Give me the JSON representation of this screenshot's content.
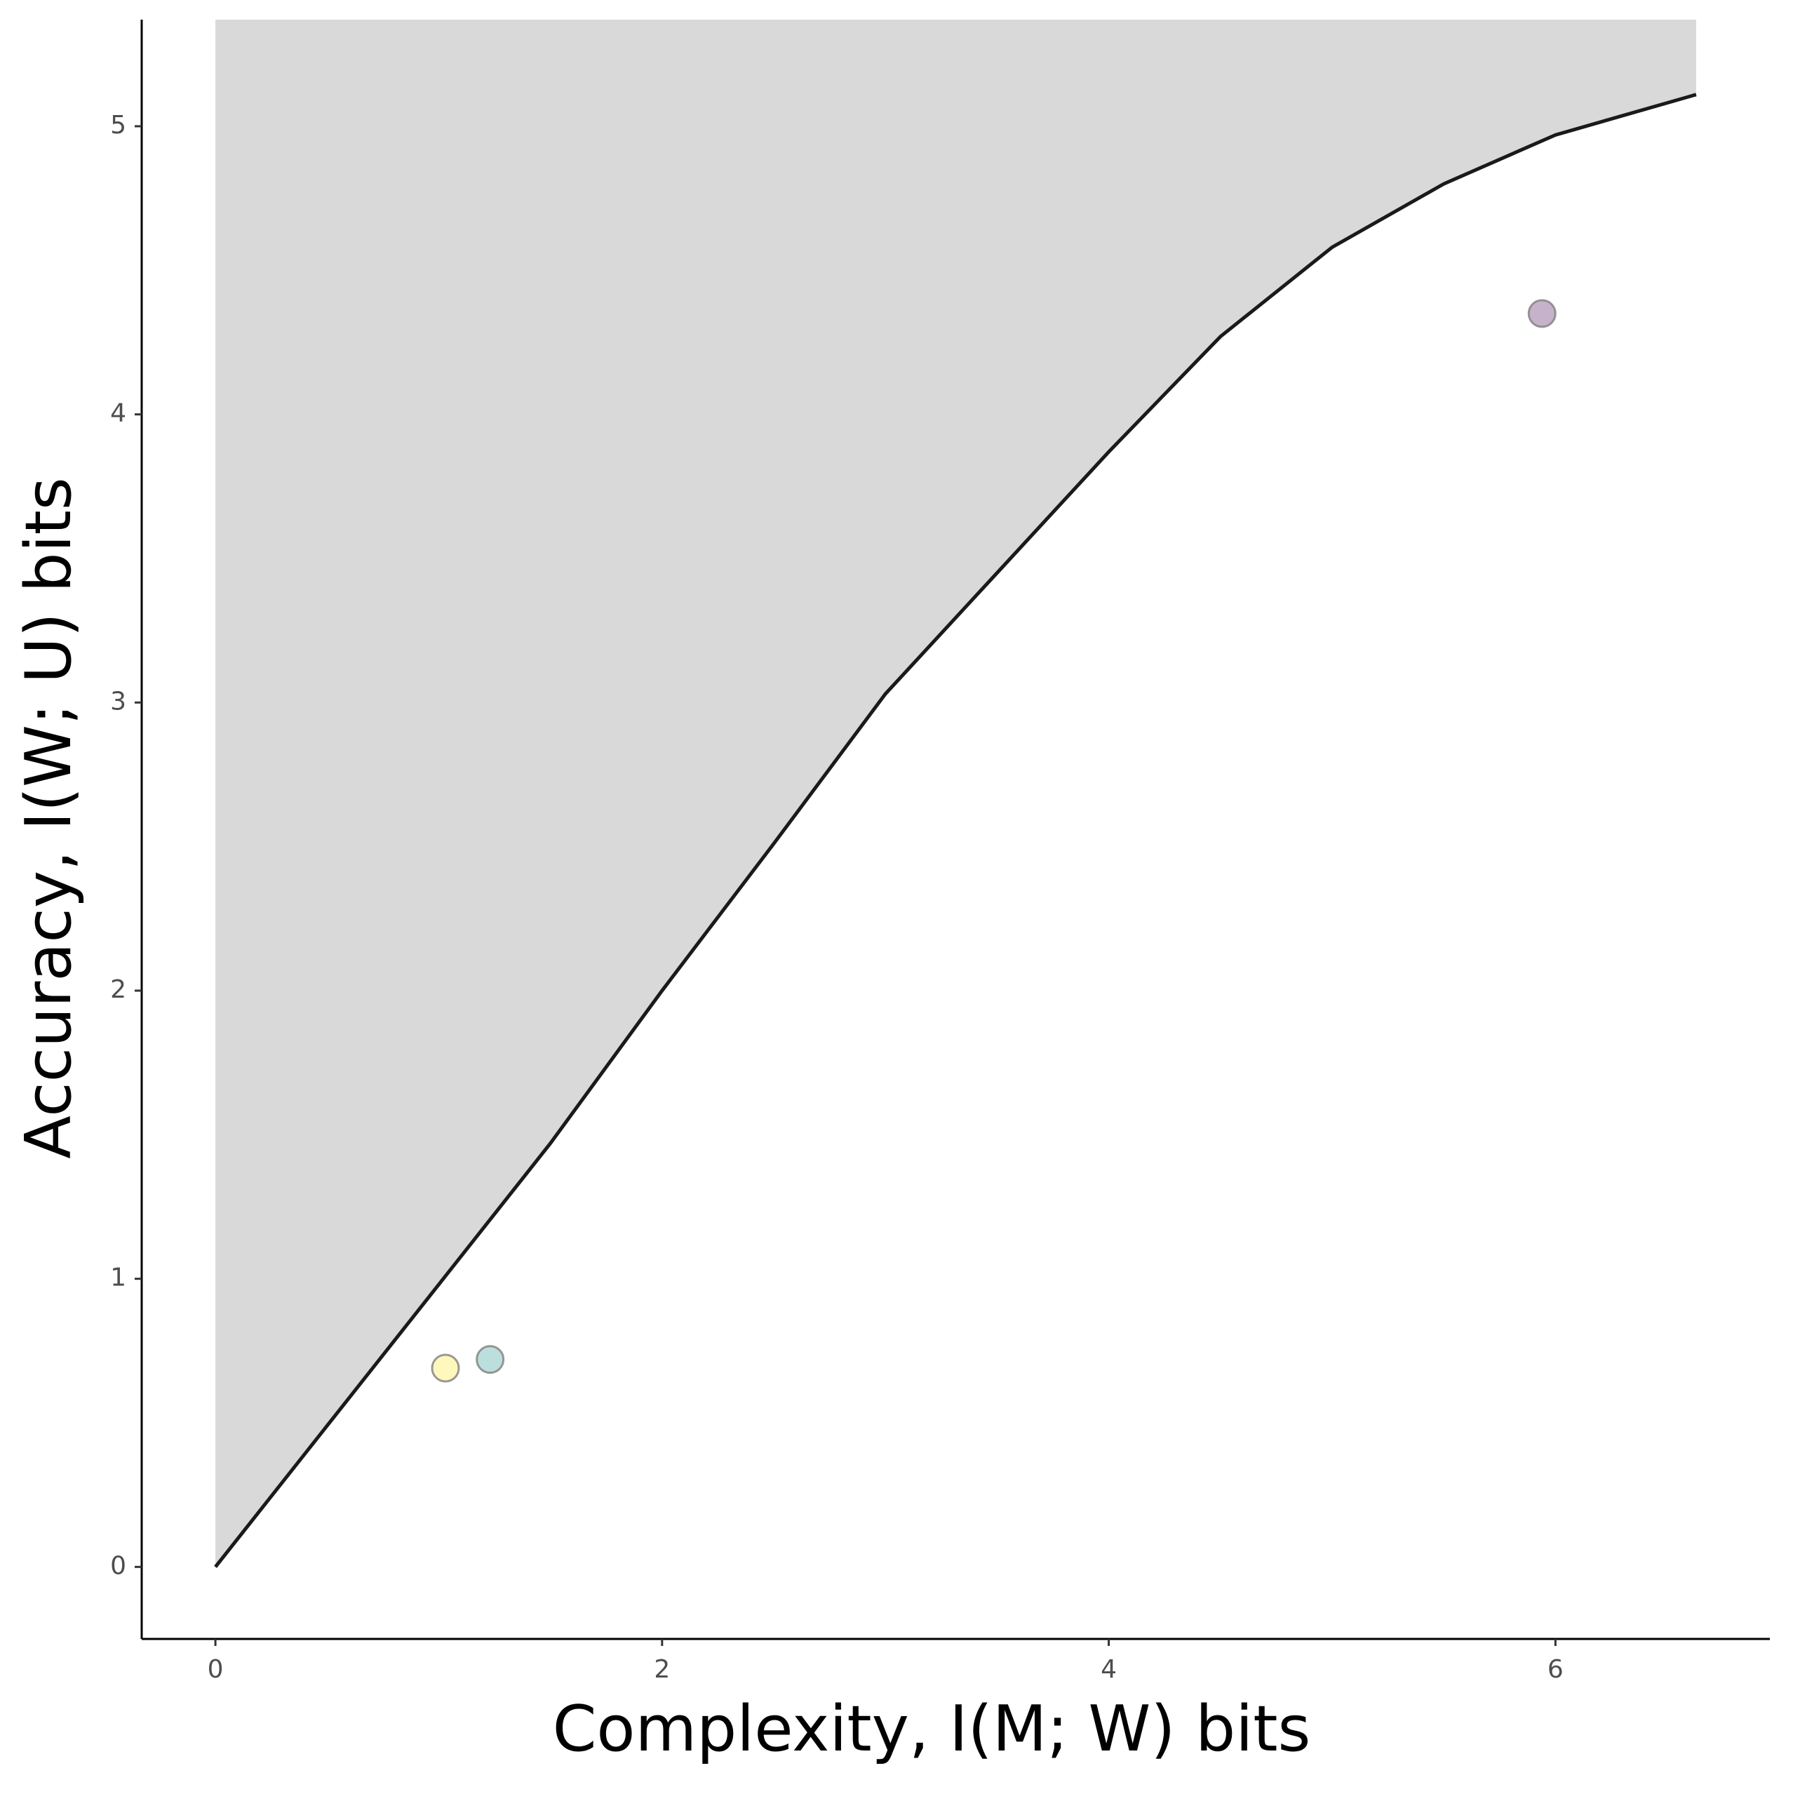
{
  "chart_data": {
    "type": "scatter",
    "x_label": "Complexity, I(M; W) bits",
    "y_label": "Accuracy, I(W; U) bits",
    "xlim": [
      -0.33,
      6.96
    ],
    "ylim": [
      -0.25,
      5.37
    ],
    "xticks": [
      0,
      2,
      4,
      6
    ],
    "yticks": [
      0,
      1,
      2,
      3,
      4,
      5
    ],
    "frontier": {
      "color": "#1a1a1a",
      "fill": "#d9d9d9",
      "x": [
        0,
        0.5,
        1,
        1.5,
        2,
        2.5,
        3,
        3.5,
        4,
        4.5,
        5,
        5.5,
        6,
        6.63
      ],
      "values": [
        0,
        0.49,
        0.98,
        1.47,
        2.0,
        2.51,
        3.03,
        3.45,
        3.87,
        4.27,
        4.58,
        4.8,
        4.97,
        5.11
      ]
    },
    "series": [
      {
        "color": "#fde725",
        "x": [
          1.03
        ],
        "values": [
          0.69
        ]
      },
      {
        "color": "#21918c",
        "x": [
          1.23
        ],
        "values": [
          0.72
        ]
      },
      {
        "color": "#440154",
        "x": [
          5.94
        ],
        "values": [
          4.35
        ]
      }
    ]
  }
}
